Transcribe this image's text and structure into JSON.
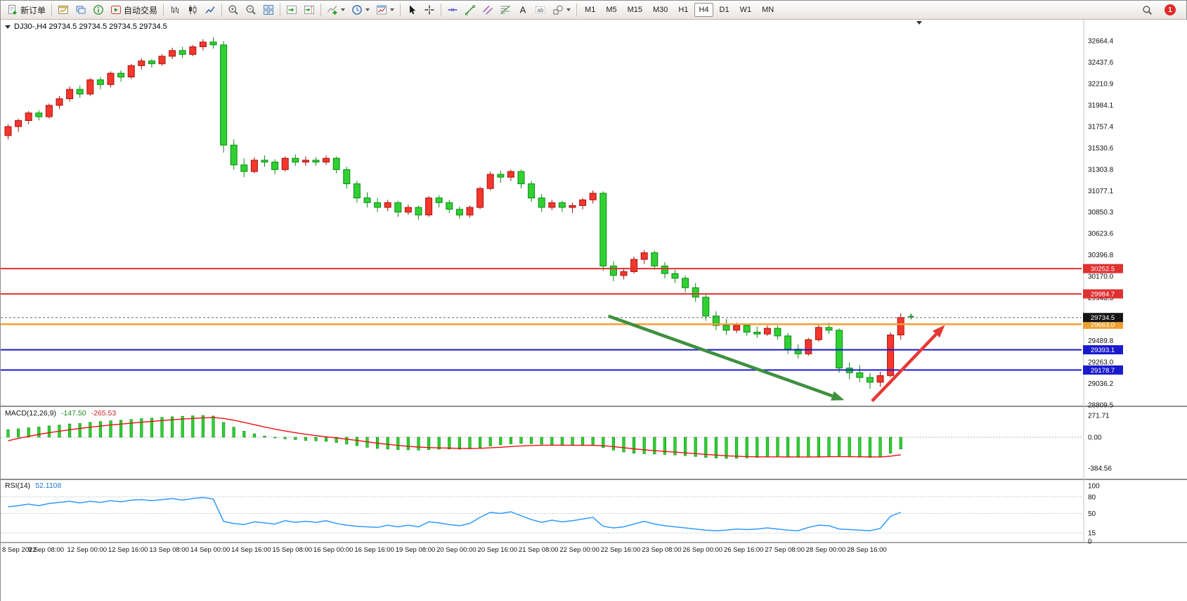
{
  "toolbar": {
    "groups": [
      {
        "items": [
          {
            "name": "new-order-button",
            "icon": "new-order",
            "label": "新订单"
          }
        ]
      },
      {
        "items": [
          {
            "name": "new-chart-button",
            "icon": "new-chart"
          },
          {
            "name": "profiles-button",
            "icon": "profiles"
          },
          {
            "name": "data-window-button",
            "icon": "data-window"
          },
          {
            "name": "auto-trading-button",
            "icon": "auto-trading",
            "label": "自动交易"
          }
        ]
      },
      {
        "items": [
          {
            "name": "bar-chart-button",
            "icon": "bars"
          },
          {
            "name": "candle-chart-button",
            "icon": "candles"
          },
          {
            "name": "line-chart-button",
            "icon": "line-chart"
          }
        ]
      },
      {
        "items": [
          {
            "name": "zoom-in-button",
            "icon": "zoom-in"
          },
          {
            "name": "zoom-out-button",
            "icon": "zoom-out"
          },
          {
            "name": "tile-windows-button",
            "icon": "tile"
          }
        ]
      },
      {
        "items": [
          {
            "name": "auto-scroll-button",
            "icon": "auto-scroll"
          },
          {
            "name": "chart-shift-button",
            "icon": "chart-shift"
          }
        ]
      },
      {
        "items": [
          {
            "name": "indicators-button",
            "icon": "indicators",
            "dropdown": true
          },
          {
            "name": "periods-button",
            "icon": "clock",
            "dropdown": true
          },
          {
            "name": "templates-button",
            "icon": "template",
            "dropdown": true
          }
        ]
      },
      {
        "items": [
          {
            "name": "cursor-button",
            "icon": "cursor"
          },
          {
            "name": "crosshair-button",
            "icon": "crosshair"
          }
        ]
      },
      {
        "items": [
          {
            "name": "hline-button",
            "icon": "hline"
          },
          {
            "name": "trendline-button",
            "icon": "trendline"
          },
          {
            "name": "channel-button",
            "icon": "channel"
          },
          {
            "name": "fibonacci-button",
            "icon": "fibo"
          },
          {
            "name": "text-button",
            "icon": "text"
          },
          {
            "name": "label-button",
            "icon": "label"
          },
          {
            "name": "shapes-button",
            "icon": "shapes",
            "dropdown": true
          }
        ]
      }
    ],
    "timeframes": {
      "options": [
        "M1",
        "M5",
        "M15",
        "M30",
        "H1",
        "H4",
        "D1",
        "W1",
        "MN"
      ],
      "active": "H4"
    },
    "notification_count": "1"
  },
  "chart": {
    "title": "DJ30-,H4  29734.5 29734.5 29734.5 29734.5",
    "price_axis": [
      "32664.4",
      "32437.6",
      "32210.9",
      "31984.1",
      "31757.4",
      "31530.6",
      "31303.8",
      "31077.1",
      "30850.3",
      "30623.6",
      "30396.8",
      "30170.0",
      "29943.3",
      "29716.5",
      "29489.8",
      "29263.0",
      "29036.2",
      "28809.5"
    ]
  },
  "chart_data": {
    "type": "candlestick",
    "symbol": "DJ30-",
    "timeframe": "H4",
    "current_price": 29734.5,
    "current_price_label": "29734.5",
    "colors": {
      "up": "#f5372c",
      "up_stroke": "#a81210",
      "down": "#2fd132",
      "down_stroke": "#0f8a14",
      "macd_hist": "#2fd132",
      "macd_hist_stroke": "#128a16",
      "macd_signal": "#ee1111",
      "rsi": "#2e9bff"
    },
    "candles": [
      [
        31660,
        31780,
        31620,
        31755
      ],
      [
        31755,
        31840,
        31700,
        31820
      ],
      [
        31820,
        31920,
        31780,
        31900
      ],
      [
        31900,
        31930,
        31820,
        31860
      ],
      [
        31860,
        32000,
        31840,
        31980
      ],
      [
        31980,
        32080,
        31940,
        32050
      ],
      [
        32050,
        32180,
        32020,
        32150
      ],
      [
        32150,
        32190,
        32060,
        32100
      ],
      [
        32100,
        32270,
        32080,
        32250
      ],
      [
        32250,
        32280,
        32150,
        32200
      ],
      [
        32200,
        32340,
        32170,
        32320
      ],
      [
        32320,
        32350,
        32230,
        32280
      ],
      [
        32280,
        32420,
        32260,
        32400
      ],
      [
        32400,
        32480,
        32360,
        32450
      ],
      [
        32450,
        32470,
        32380,
        32420
      ],
      [
        32420,
        32520,
        32400,
        32500
      ],
      [
        32500,
        32590,
        32470,
        32560
      ],
      [
        32560,
        32600,
        32480,
        32520
      ],
      [
        32520,
        32620,
        32500,
        32600
      ],
      [
        32600,
        32680,
        32560,
        32650
      ],
      [
        32650,
        32700,
        32580,
        32620
      ],
      [
        32620,
        32660,
        31480,
        31560
      ],
      [
        31560,
        31620,
        31300,
        31350
      ],
      [
        31350,
        31420,
        31220,
        31280
      ],
      [
        31280,
        31430,
        31260,
        31400
      ],
      [
        31400,
        31450,
        31330,
        31380
      ],
      [
        31380,
        31410,
        31250,
        31300
      ],
      [
        31300,
        31440,
        31280,
        31420
      ],
      [
        31420,
        31460,
        31340,
        31380
      ],
      [
        31380,
        31440,
        31340,
        31400
      ],
      [
        31400,
        31430,
        31340,
        31380
      ],
      [
        31380,
        31450,
        31350,
        31420
      ],
      [
        31420,
        31440,
        31260,
        31300
      ],
      [
        31300,
        31330,
        31100,
        31150
      ],
      [
        31150,
        31180,
        30950,
        31000
      ],
      [
        31000,
        31060,
        30900,
        30950
      ],
      [
        30950,
        31000,
        30850,
        30900
      ],
      [
        30900,
        30980,
        30860,
        30950
      ],
      [
        30950,
        30970,
        30800,
        30850
      ],
      [
        30850,
        30930,
        30820,
        30900
      ],
      [
        30900,
        30920,
        30770,
        30820
      ],
      [
        30820,
        31020,
        30800,
        31000
      ],
      [
        31000,
        31030,
        30900,
        30950
      ],
      [
        30950,
        30980,
        30840,
        30880
      ],
      [
        30880,
        30910,
        30780,
        30820
      ],
      [
        30820,
        30920,
        30790,
        30900
      ],
      [
        30900,
        31120,
        30880,
        31100
      ],
      [
        31100,
        31280,
        31080,
        31250
      ],
      [
        31250,
        31290,
        31160,
        31220
      ],
      [
        31220,
        31300,
        31180,
        31280
      ],
      [
        31280,
        31300,
        31100,
        31150
      ],
      [
        31150,
        31180,
        30960,
        31000
      ],
      [
        31000,
        31040,
        30850,
        30900
      ],
      [
        30900,
        30980,
        30870,
        30950
      ],
      [
        30950,
        30970,
        30850,
        30900
      ],
      [
        30900,
        30950,
        30840,
        30920
      ],
      [
        30920,
        31000,
        30880,
        30980
      ],
      [
        30980,
        31080,
        30940,
        31050
      ],
      [
        31050,
        31070,
        30230,
        30280
      ],
      [
        30280,
        30330,
        30120,
        30180
      ],
      [
        30180,
        30260,
        30140,
        30220
      ],
      [
        30220,
        30380,
        30200,
        30350
      ],
      [
        30350,
        30450,
        30300,
        30420
      ],
      [
        30420,
        30440,
        30240,
        30280
      ],
      [
        30280,
        30320,
        30150,
        30200
      ],
      [
        30200,
        30240,
        30100,
        30150
      ],
      [
        30150,
        30180,
        30000,
        30050
      ],
      [
        30050,
        30100,
        29900,
        29950
      ],
      [
        29950,
        29980,
        29700,
        29750
      ],
      [
        29750,
        29800,
        29600,
        29650
      ],
      [
        29650,
        29720,
        29550,
        29600
      ],
      [
        29600,
        29680,
        29570,
        29650
      ],
      [
        29650,
        29670,
        29540,
        29580
      ],
      [
        29580,
        29640,
        29520,
        29560
      ],
      [
        29560,
        29650,
        29540,
        29620
      ],
      [
        29620,
        29650,
        29500,
        29540
      ],
      [
        29540,
        29570,
        29350,
        29400
      ],
      [
        29400,
        29450,
        29300,
        29350
      ],
      [
        29350,
        29520,
        29330,
        29500
      ],
      [
        29500,
        29660,
        29480,
        29630
      ],
      [
        29630,
        29680,
        29560,
        29600
      ],
      [
        29600,
        29620,
        29150,
        29200
      ],
      [
        29200,
        29260,
        29080,
        29150
      ],
      [
        29150,
        29230,
        29050,
        29100
      ],
      [
        29100,
        29150,
        28980,
        29050
      ],
      [
        29050,
        29160,
        29000,
        29120
      ],
      [
        29120,
        29580,
        29100,
        29550
      ],
      [
        29550,
        29780,
        29500,
        29734.5
      ]
    ],
    "hlines": [
      {
        "name": "resistance-line-1",
        "price": 30252.5,
        "label": "30252.5",
        "color": "#e03030",
        "width": 2
      },
      {
        "name": "resistance-line-2",
        "price": 29984.7,
        "label": "29984.7",
        "color": "#e03030",
        "width": 2
      },
      {
        "name": "pivot-line",
        "price": 29663.0,
        "label": "29663.0",
        "color": "#f0a030",
        "width": 2.5
      },
      {
        "name": "support-line-1",
        "price": 29393.1,
        "label": "29393.1",
        "color": "#1a1acd",
        "width": 2
      },
      {
        "name": "support-line-2",
        "price": 29178.7,
        "label": "29178.7",
        "color": "#1a1acd",
        "width": 2
      }
    ],
    "arrows": [
      {
        "name": "downtrend-arrow",
        "color": "#3f8f3f",
        "from": [
          58.5,
          29750
        ],
        "to": [
          81.5,
          28860
        ]
      },
      {
        "name": "uptrend-arrow",
        "color": "#e53935",
        "from": [
          84.2,
          28850
        ],
        "to": [
          91.3,
          29655
        ]
      }
    ],
    "marker": {
      "candle": 88,
      "price": 29745,
      "color": "#1b8a2a"
    },
    "macd": {
      "title": "MACD(12,26,9)",
      "value_main": "-147.50",
      "value_signal": "-265.53",
      "axis_labels": [
        "271.71",
        "0.00",
        "-384.56"
      ],
      "axis_values": [
        271.71,
        0,
        -384.56
      ],
      "main": [
        95,
        105,
        118,
        128,
        142,
        152,
        166,
        172,
        186,
        196,
        206,
        212,
        222,
        232,
        238,
        248,
        256,
        261,
        267,
        271.7,
        264,
        185,
        125,
        75,
        42,
        15,
        -5,
        -20,
        -30,
        -40,
        -46,
        -52,
        -66,
        -86,
        -106,
        -126,
        -140,
        -148,
        -155,
        -158,
        -160,
        -155,
        -150,
        -148,
        -150,
        -145,
        -130,
        -110,
        -95,
        -83,
        -78,
        -80,
        -88,
        -95,
        -100,
        -103,
        -103,
        -100,
        -130,
        -160,
        -185,
        -200,
        -206,
        -210,
        -215,
        -222,
        -230,
        -240,
        -252,
        -260,
        -265.5,
        -263,
        -258,
        -252,
        -248,
        -245,
        -248,
        -250,
        -248,
        -240,
        -233,
        -238,
        -245,
        -250,
        -252,
        -248,
        -200,
        -147.5
      ]
    },
    "rsi": {
      "title": "RSI(14)",
      "value": "52.1108",
      "axis_labels": [
        "100",
        "80",
        "50",
        "15",
        "0"
      ],
      "axis_values": [
        100,
        80,
        50,
        15,
        0
      ],
      "levels": [
        80,
        50,
        15
      ],
      "values": [
        62,
        64,
        67,
        64,
        68,
        70,
        72,
        69,
        72,
        70,
        73,
        71,
        74,
        75,
        73,
        75,
        77,
        74,
        77,
        79,
        76,
        36,
        32,
        30,
        35,
        33,
        31,
        37,
        34,
        36,
        34,
        37,
        32,
        29,
        27,
        26,
        25,
        29,
        26,
        29,
        26,
        35,
        33,
        30,
        28,
        32,
        43,
        52,
        50,
        53,
        46,
        39,
        34,
        38,
        35,
        37,
        40,
        43,
        27,
        24,
        26,
        31,
        36,
        31,
        28,
        26,
        24,
        22,
        20,
        19,
        20,
        22,
        21,
        22,
        24,
        22,
        20,
        19,
        25,
        29,
        28,
        22,
        21,
        20,
        19,
        23,
        45,
        52.11
      ]
    },
    "time_axis": [
      "8 Sep 2022",
      "9 Sep 08:00",
      "12 Sep 00:00",
      "12 Sep 16:00",
      "13 Sep 08:00",
      "14 Sep 00:00",
      "14 Sep 16:00",
      "15 Sep 08:00",
      "16 Sep 00:00",
      "16 Sep 16:00",
      "19 Sep 08:00",
      "20 Sep 00:00",
      "20 Sep 16:00",
      "21 Sep 08:00",
      "22 Sep 00:00",
      "22 Sep 16:00",
      "23 Sep 08:00",
      "26 Sep 00:00",
      "26 Sep 16:00",
      "27 Sep 08:00",
      "28 Sep 00:00",
      "28 Sep 16:00"
    ]
  }
}
